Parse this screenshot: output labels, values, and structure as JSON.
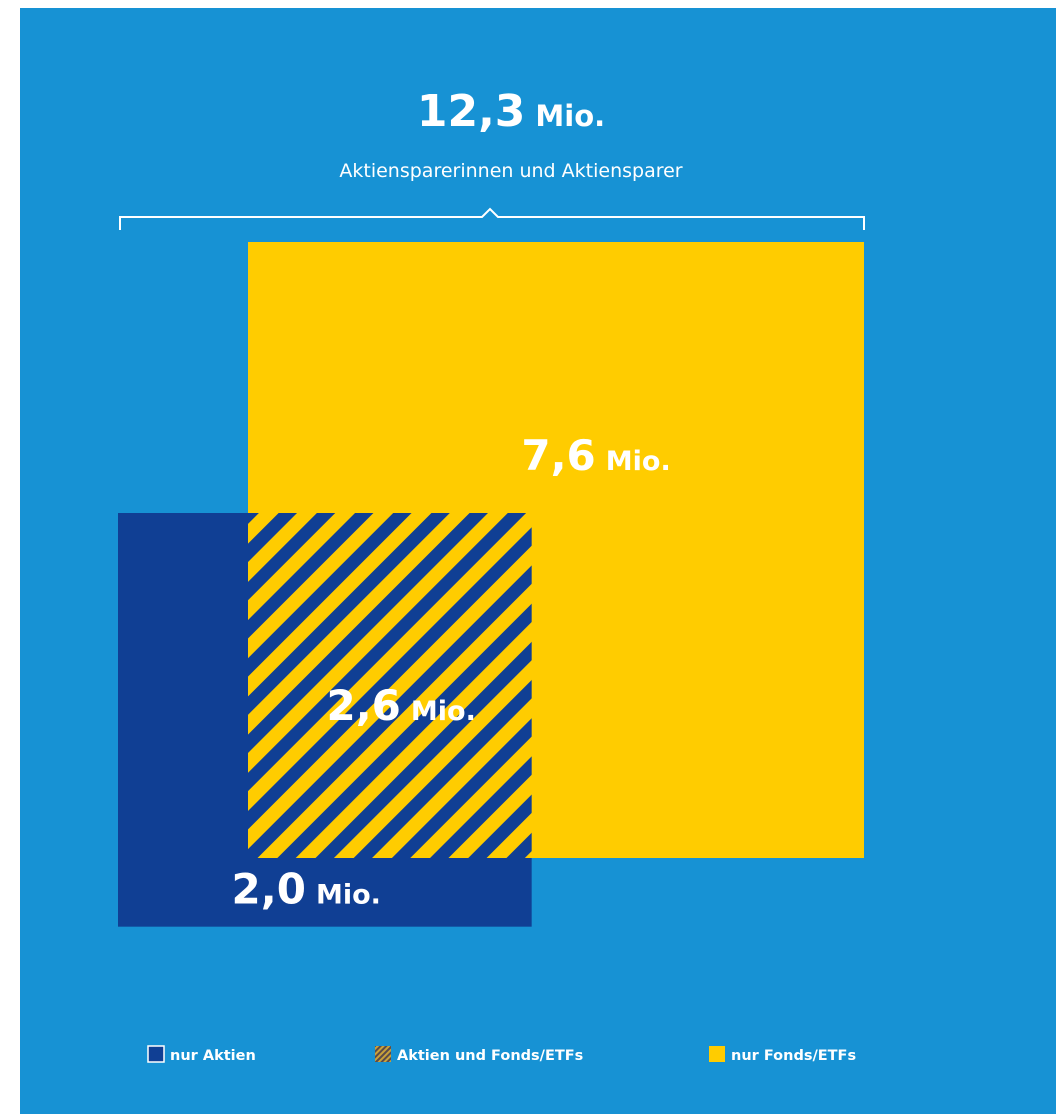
{
  "colors": {
    "background": "#1792d4",
    "aktien": "#103f94",
    "fonds": "#ffcc00",
    "text": "#ffffff"
  },
  "chart_data": {
    "type": "area",
    "title": "12,3",
    "title_unit": "Mio.",
    "subtitle": "Aktiensparerinnen und Aktiensparer",
    "total": 12.3,
    "unit": "Mio.",
    "series": [
      {
        "name": "nur Aktien",
        "value": 2.0,
        "label_number": "2,0",
        "label_unit": "Mio.",
        "color": "#103f94",
        "pattern": "solid"
      },
      {
        "name": "Aktien und Fonds/ETFs",
        "value": 2.6,
        "label_number": "2,6",
        "label_unit": "Mio.",
        "color": "#ffcc00",
        "pattern": "striped"
      },
      {
        "name": "nur Fonds/ETFs",
        "value": 7.6,
        "label_number": "7,6",
        "label_unit": "Mio.",
        "color": "#ffcc00",
        "pattern": "solid"
      }
    ],
    "legend_position": "bottom"
  }
}
